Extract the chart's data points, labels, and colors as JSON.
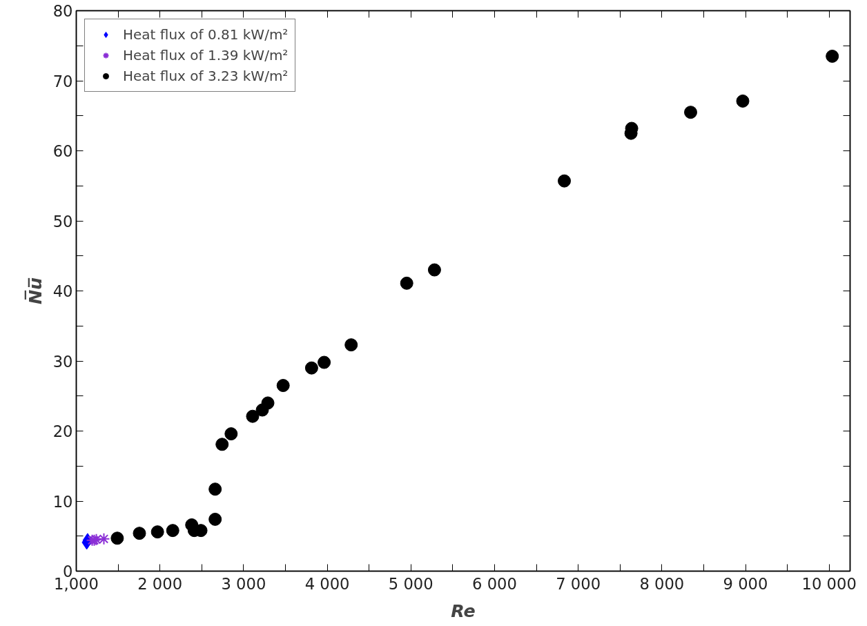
{
  "chart_data": {
    "type": "scatter",
    "xlabel": "Re",
    "ylabel": "N̅u̅",
    "xlim": [
      1000,
      10250
    ],
    "ylim": [
      0,
      80
    ],
    "xticks": [
      {
        "value": 1000,
        "label": "1,000"
      },
      {
        "value": 1500,
        "label": null
      },
      {
        "value": 2000,
        "label": "2 000"
      },
      {
        "value": 2500,
        "label": null
      },
      {
        "value": 3000,
        "label": "3 000"
      },
      {
        "value": 3500,
        "label": null
      },
      {
        "value": 4000,
        "label": "4 000"
      },
      {
        "value": 4500,
        "label": null
      },
      {
        "value": 5000,
        "label": "5 000"
      },
      {
        "value": 5500,
        "label": null
      },
      {
        "value": 6000,
        "label": "6 000"
      },
      {
        "value": 6500,
        "label": null
      },
      {
        "value": 7000,
        "label": "7 000"
      },
      {
        "value": 7500,
        "label": null
      },
      {
        "value": 8000,
        "label": "8 000"
      },
      {
        "value": 8500,
        "label": null
      },
      {
        "value": 9000,
        "label": "9 000"
      },
      {
        "value": 9500,
        "label": null
      },
      {
        "value": 10000,
        "label": "10 000"
      }
    ],
    "yticks": [
      0,
      {
        "value": 5,
        "label": null
      },
      10,
      {
        "value": 15,
        "label": null
      },
      20,
      {
        "value": 25,
        "label": null
      },
      30,
      {
        "value": 35,
        "label": null
      },
      40,
      {
        "value": 45,
        "label": null
      },
      50,
      {
        "value": 55,
        "label": null
      },
      60,
      {
        "value": 65,
        "label": null
      },
      70,
      {
        "value": 75,
        "label": null
      },
      80
    ],
    "grid": false,
    "legend": "top left",
    "series": [
      {
        "name": "Heat flux of 0.81 kW/m²",
        "color": "#0000ff",
        "marker": "diamond",
        "x": [
          1125,
          1135
        ],
        "values": [
          4.1,
          4.4
        ]
      },
      {
        "name": "Heat flux of 1.39 kW/m²",
        "color": "#8b2fd6",
        "marker": "cross",
        "x": [
          1190,
          1215,
          1240,
          1330
        ],
        "values": [
          4.4,
          4.4,
          4.5,
          4.6
        ]
      },
      {
        "name": "Heat flux of 3.23 kW/m²",
        "color": "#000000",
        "marker": "circle",
        "x": [
          1490,
          1755,
          1971,
          2153,
          2380,
          2410,
          2490,
          2660,
          2660,
          2743,
          2851,
          3108,
          3224,
          3290,
          3473,
          3813,
          3963,
          4286,
          4950,
          5282,
          6834,
          7631,
          7639,
          8344,
          8967,
          10037
        ],
        "values": [
          4.7,
          5.4,
          5.6,
          5.8,
          6.6,
          5.8,
          5.8,
          7.4,
          11.7,
          18.1,
          19.6,
          22.1,
          23.0,
          24.0,
          26.5,
          29.0,
          29.8,
          32.3,
          41.1,
          43.0,
          55.7,
          62.5,
          63.2,
          65.5,
          67.1,
          73.5
        ]
      }
    ]
  }
}
